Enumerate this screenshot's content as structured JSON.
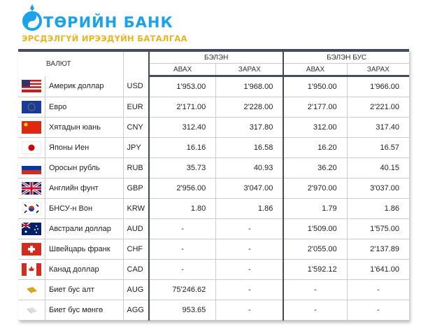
{
  "header": {
    "brand": "ТӨРИЙН БАНК",
    "slogan": "ЭРСДЭЛГҮЙ ИРЭЭДҮЙН БАТАЛГАА",
    "brand_color": "#1aa3e8",
    "slogan_color": "#e8b51a"
  },
  "table": {
    "col_currency": "ВАЛЮТ",
    "group_cash": "БЭЛЭН",
    "group_noncash": "БЭЛЭН БУС",
    "buy": "АВАХ",
    "sell": "ЗАРАХ",
    "rows": [
      {
        "flag": "us-flag-icon",
        "name": "Америк доллар",
        "code": "USD",
        "cash_buy": "1'953.00",
        "cash_sell": "1'968.00",
        "nc_buy": "1'950.00",
        "nc_sell": "1'966.00"
      },
      {
        "flag": "eu-flag-icon",
        "name": "Евро",
        "code": "EUR",
        "cash_buy": "2'171.00",
        "cash_sell": "2'228.00",
        "nc_buy": "2'177.00",
        "nc_sell": "2'221.00"
      },
      {
        "flag": "cn-flag-icon",
        "name": "Хятадын юань",
        "code": "CNY",
        "cash_buy": "312.40",
        "cash_sell": "317.80",
        "nc_buy": "312.00",
        "nc_sell": "317.40"
      },
      {
        "flag": "jp-flag-icon",
        "name": "Японы Иен",
        "code": "JPY",
        "cash_buy": "16.16",
        "cash_sell": "16.58",
        "nc_buy": "16.20",
        "nc_sell": "16.57"
      },
      {
        "flag": "ru-flag-icon",
        "name": "Оросын рубль",
        "code": "RUB",
        "cash_buy": "35.73",
        "cash_sell": "40.93",
        "nc_buy": "36.20",
        "nc_sell": "40.15"
      },
      {
        "flag": "gb-flag-icon",
        "name": "Английн фунт",
        "code": "GBP",
        "cash_buy": "2'956.00",
        "cash_sell": "3'047.00",
        "nc_buy": "2'970.00",
        "nc_sell": "3'037.00"
      },
      {
        "flag": "kr-flag-icon",
        "name": "БНСУ-н Вон",
        "code": "KRW",
        "cash_buy": "1.80",
        "cash_sell": "1.86",
        "nc_buy": "1.79",
        "nc_sell": "1.86"
      },
      {
        "flag": "au-flag-icon",
        "name": "Австрали доллар",
        "code": "AUD",
        "cash_buy": "-",
        "cash_sell": "-",
        "nc_buy": "1'509.00",
        "nc_sell": "1'575.00"
      },
      {
        "flag": "ch-flag-icon",
        "name": "Швейцарь франк",
        "code": "CHF",
        "cash_buy": "-",
        "cash_sell": "-",
        "nc_buy": "2'055.00",
        "nc_sell": "2'137.89"
      },
      {
        "flag": "ca-flag-icon",
        "name": "Канад доллар",
        "code": "CAD",
        "cash_buy": "-",
        "cash_sell": "-",
        "nc_buy": "1'592.12",
        "nc_sell": "1'641.00"
      },
      {
        "flag": "gold-bar-icon",
        "name": "Биет бус алт",
        "code": "AUG",
        "cash_buy": "75'246.62",
        "cash_sell": "-",
        "nc_buy": "-",
        "nc_sell": "-"
      },
      {
        "flag": "silver-bar-icon",
        "name": "Биет бус мөнгө",
        "code": "AGG",
        "cash_buy": "953.65",
        "cash_sell": "-",
        "nc_buy": "-",
        "nc_sell": "-"
      }
    ]
  }
}
